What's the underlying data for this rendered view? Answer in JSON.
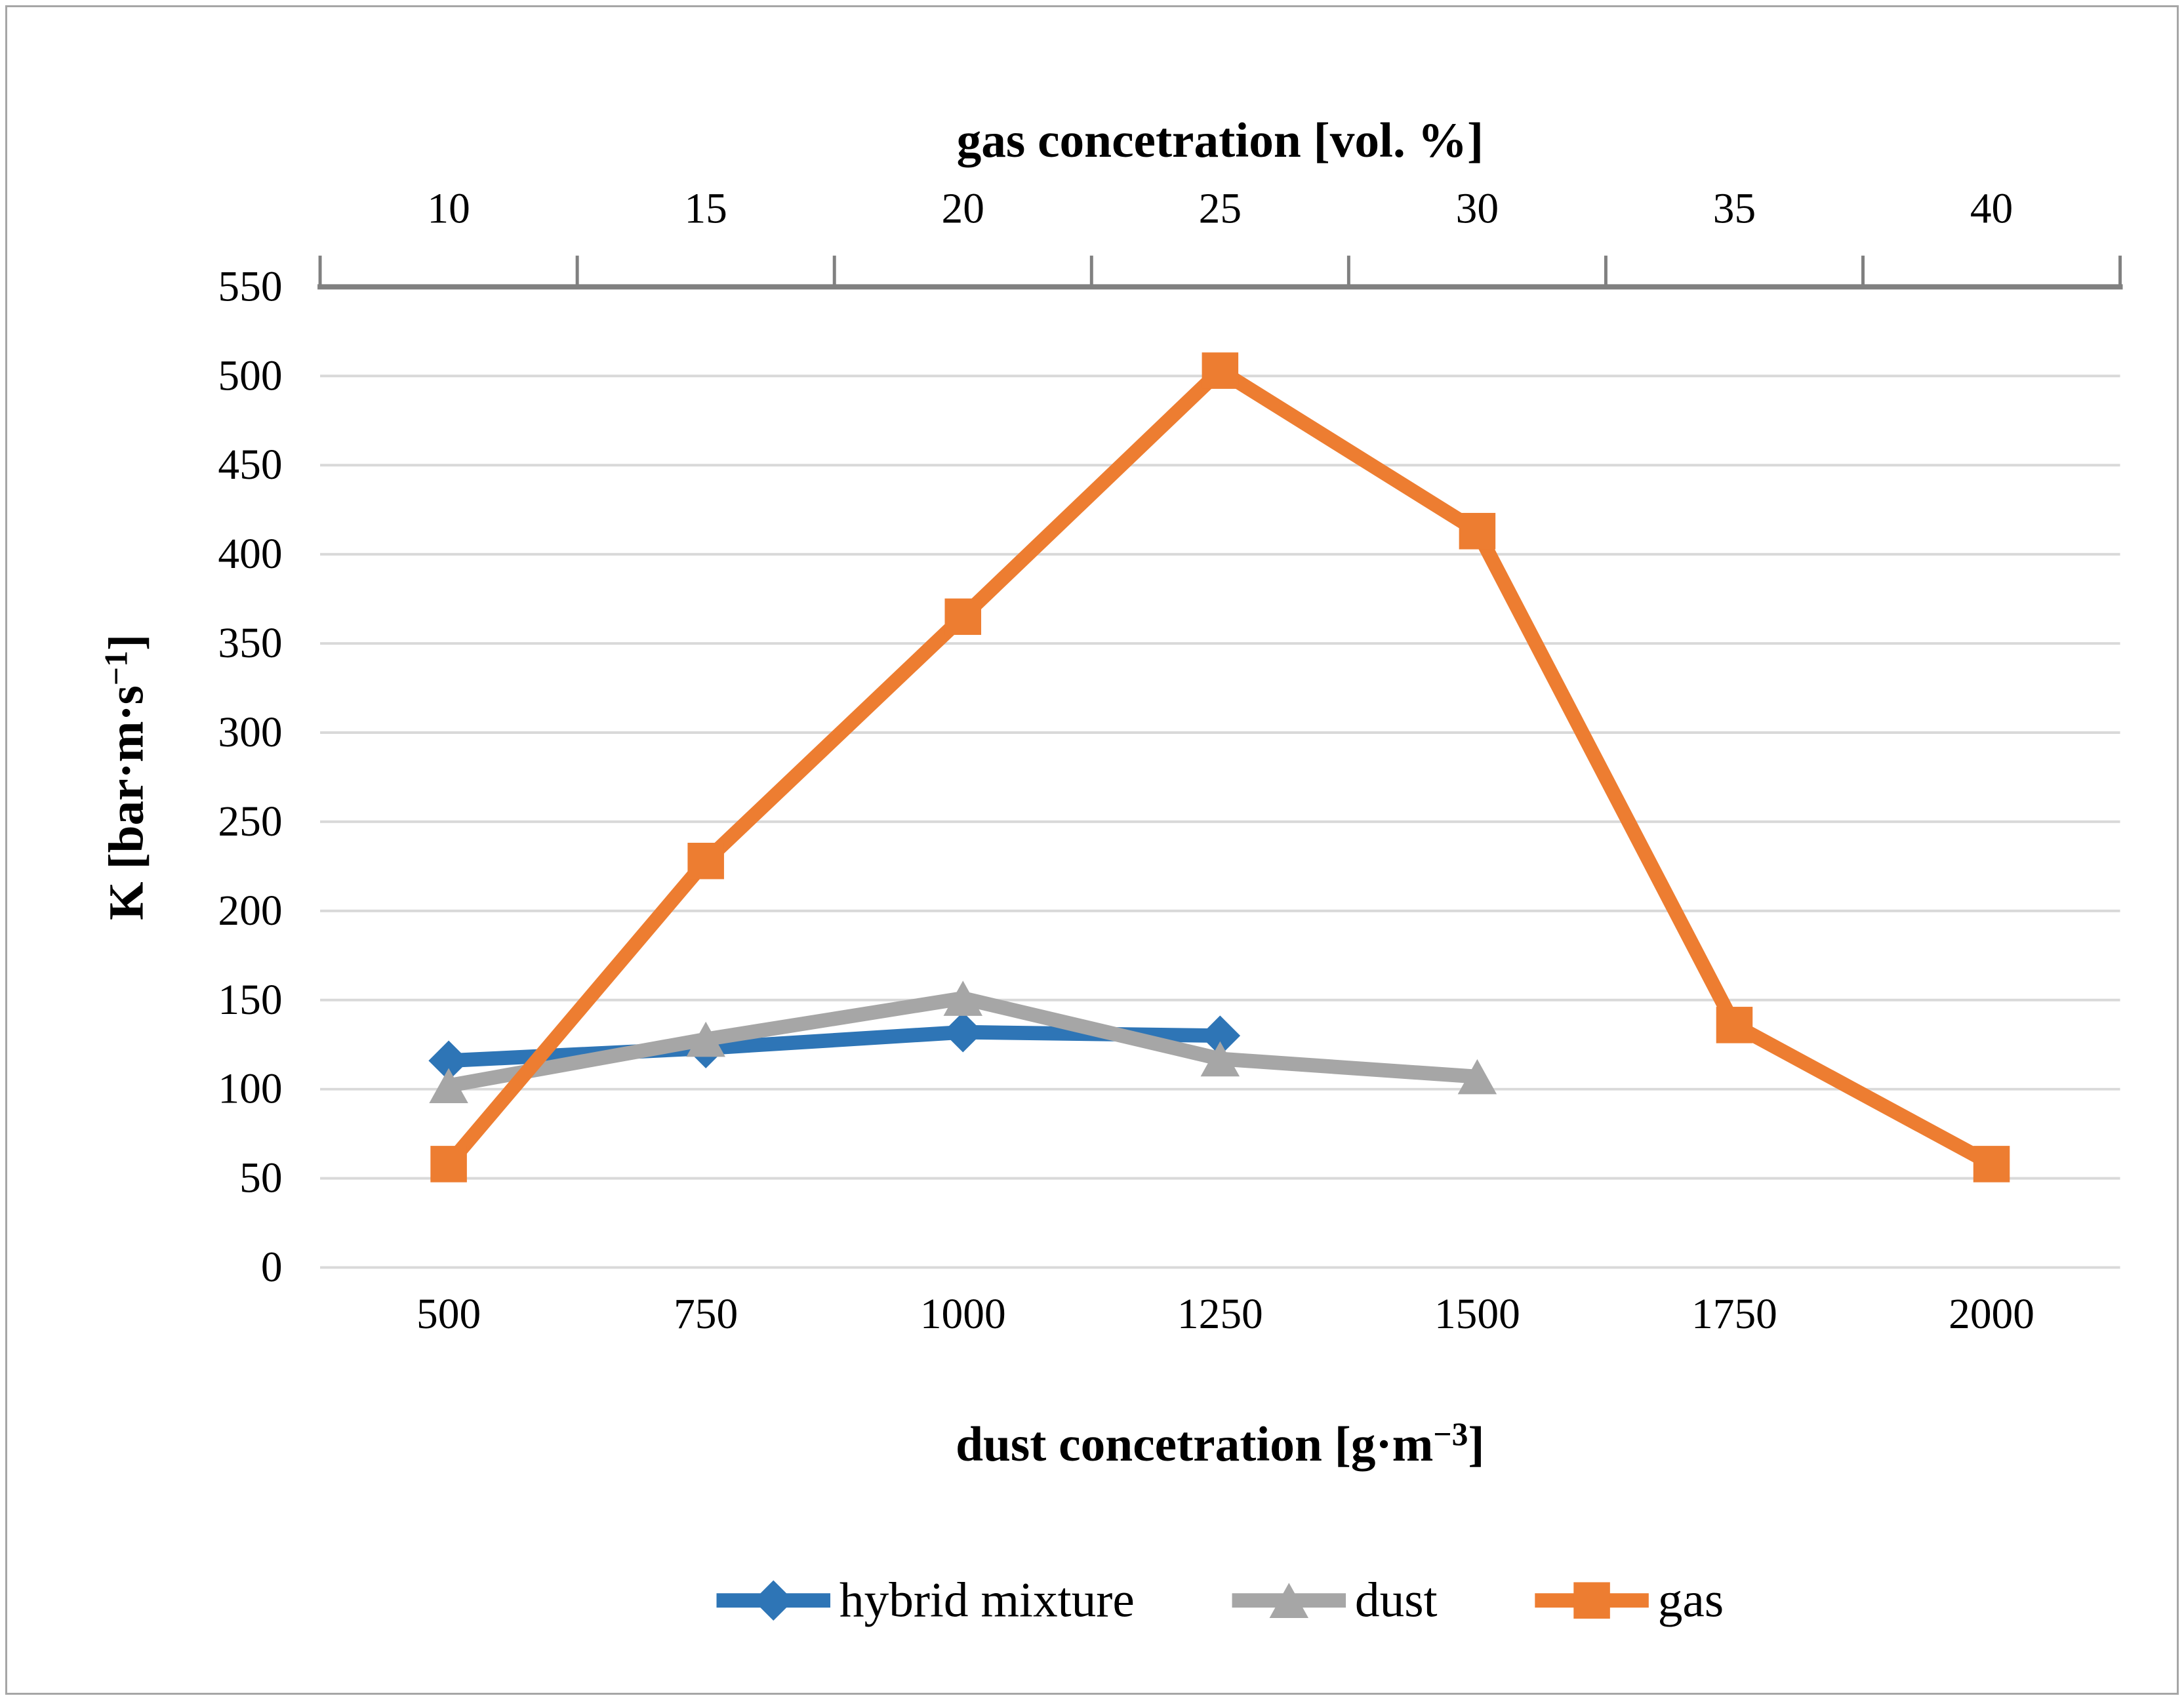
{
  "chart_data": {
    "type": "line",
    "title": "",
    "top_axis": {
      "label": "gas concetration [vol. %]",
      "label_segments": [
        {
          "t": "gas concetration [vol. %]"
        }
      ],
      "categories": [
        10,
        15,
        20,
        25,
        30,
        35,
        40
      ]
    },
    "bottom_axis": {
      "label": "dust concetration [g·m⁻³]",
      "label_segments": [
        {
          "t": "dust concetration [g·m"
        },
        {
          "t": "−3",
          "sup": true
        },
        {
          "t": "]"
        }
      ],
      "categories": [
        500,
        750,
        1000,
        1250,
        1500,
        1750,
        2000
      ]
    },
    "y_axis": {
      "label": "K [bar·m·s⁻¹]",
      "label_segments": [
        {
          "t": "K [bar·m·s"
        },
        {
          "t": "−1",
          "sup": true
        },
        {
          "t": "]"
        }
      ],
      "min": 0,
      "max": 550,
      "step": 50
    },
    "grid": true,
    "legend_position": "bottom",
    "series": [
      {
        "name": "hybrid mixture",
        "color": "#2E75B6",
        "marker": "diamond",
        "values": [
          116,
          123,
          132,
          130,
          null,
          null,
          null
        ]
      },
      {
        "name": "dust",
        "color": "#A6A6A6",
        "marker": "triangle",
        "values": [
          102,
          128,
          151,
          117,
          107,
          null,
          null
        ]
      },
      {
        "name": "gas",
        "color": "#ED7D31",
        "marker": "square",
        "values": [
          58,
          228,
          365,
          503,
          413,
          136,
          58
        ]
      }
    ]
  },
  "colors": {
    "background": "#FFFFFF",
    "gridline": "#D9D9D9",
    "axis_line": "#808080",
    "text": "#000000",
    "frame_border": "#A6A6A6"
  }
}
